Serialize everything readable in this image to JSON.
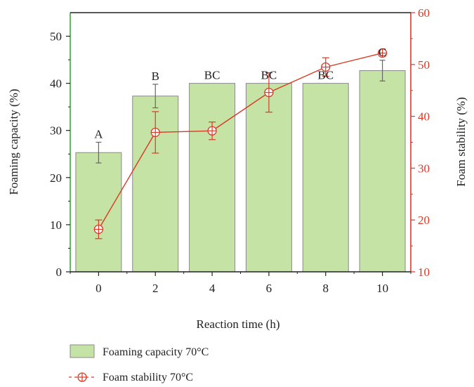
{
  "chart_data": {
    "type": "bar",
    "categories": [
      "0",
      "2",
      "4",
      "6",
      "8",
      "10"
    ],
    "xlabel": "Reaction time (h)",
    "ylabel": "Foaming capacity (%)",
    "y2label": "Foam stability (%)",
    "ylim": [
      0,
      55
    ],
    "y2lim": [
      10,
      60
    ],
    "yticks": [
      "0",
      "10",
      "20",
      "30",
      "40",
      "50"
    ],
    "y2ticks": [
      "10",
      "20",
      "30",
      "40",
      "50",
      "60"
    ],
    "legend_position": "bottom",
    "grid": false,
    "colors": {
      "bar_fill": "#c5e3a4",
      "bar_stroke": "#8a8a8a",
      "line": "#d93a26",
      "left_axis": "#3aa83a",
      "right_axis": "#d93a26",
      "error_bar": "#666666"
    },
    "series": [
      {
        "name": "Foaming capacity 70°C",
        "type": "bar",
        "axis": "left",
        "values": [
          25.3,
          37.3,
          40.0,
          40.0,
          40.0,
          42.7
        ],
        "errors": [
          2.2,
          2.5,
          0,
          0,
          0,
          2.2
        ],
        "labels": [
          "A",
          "B",
          "BC",
          "BC",
          "BC",
          "C"
        ]
      },
      {
        "name": "Foam stability 70°C",
        "type": "line",
        "axis": "right",
        "values": [
          18.2,
          36.9,
          37.2,
          44.6,
          49.5,
          52.2
        ],
        "errors": [
          1.8,
          4.0,
          1.7,
          3.8,
          1.8,
          0.6
        ]
      }
    ]
  }
}
